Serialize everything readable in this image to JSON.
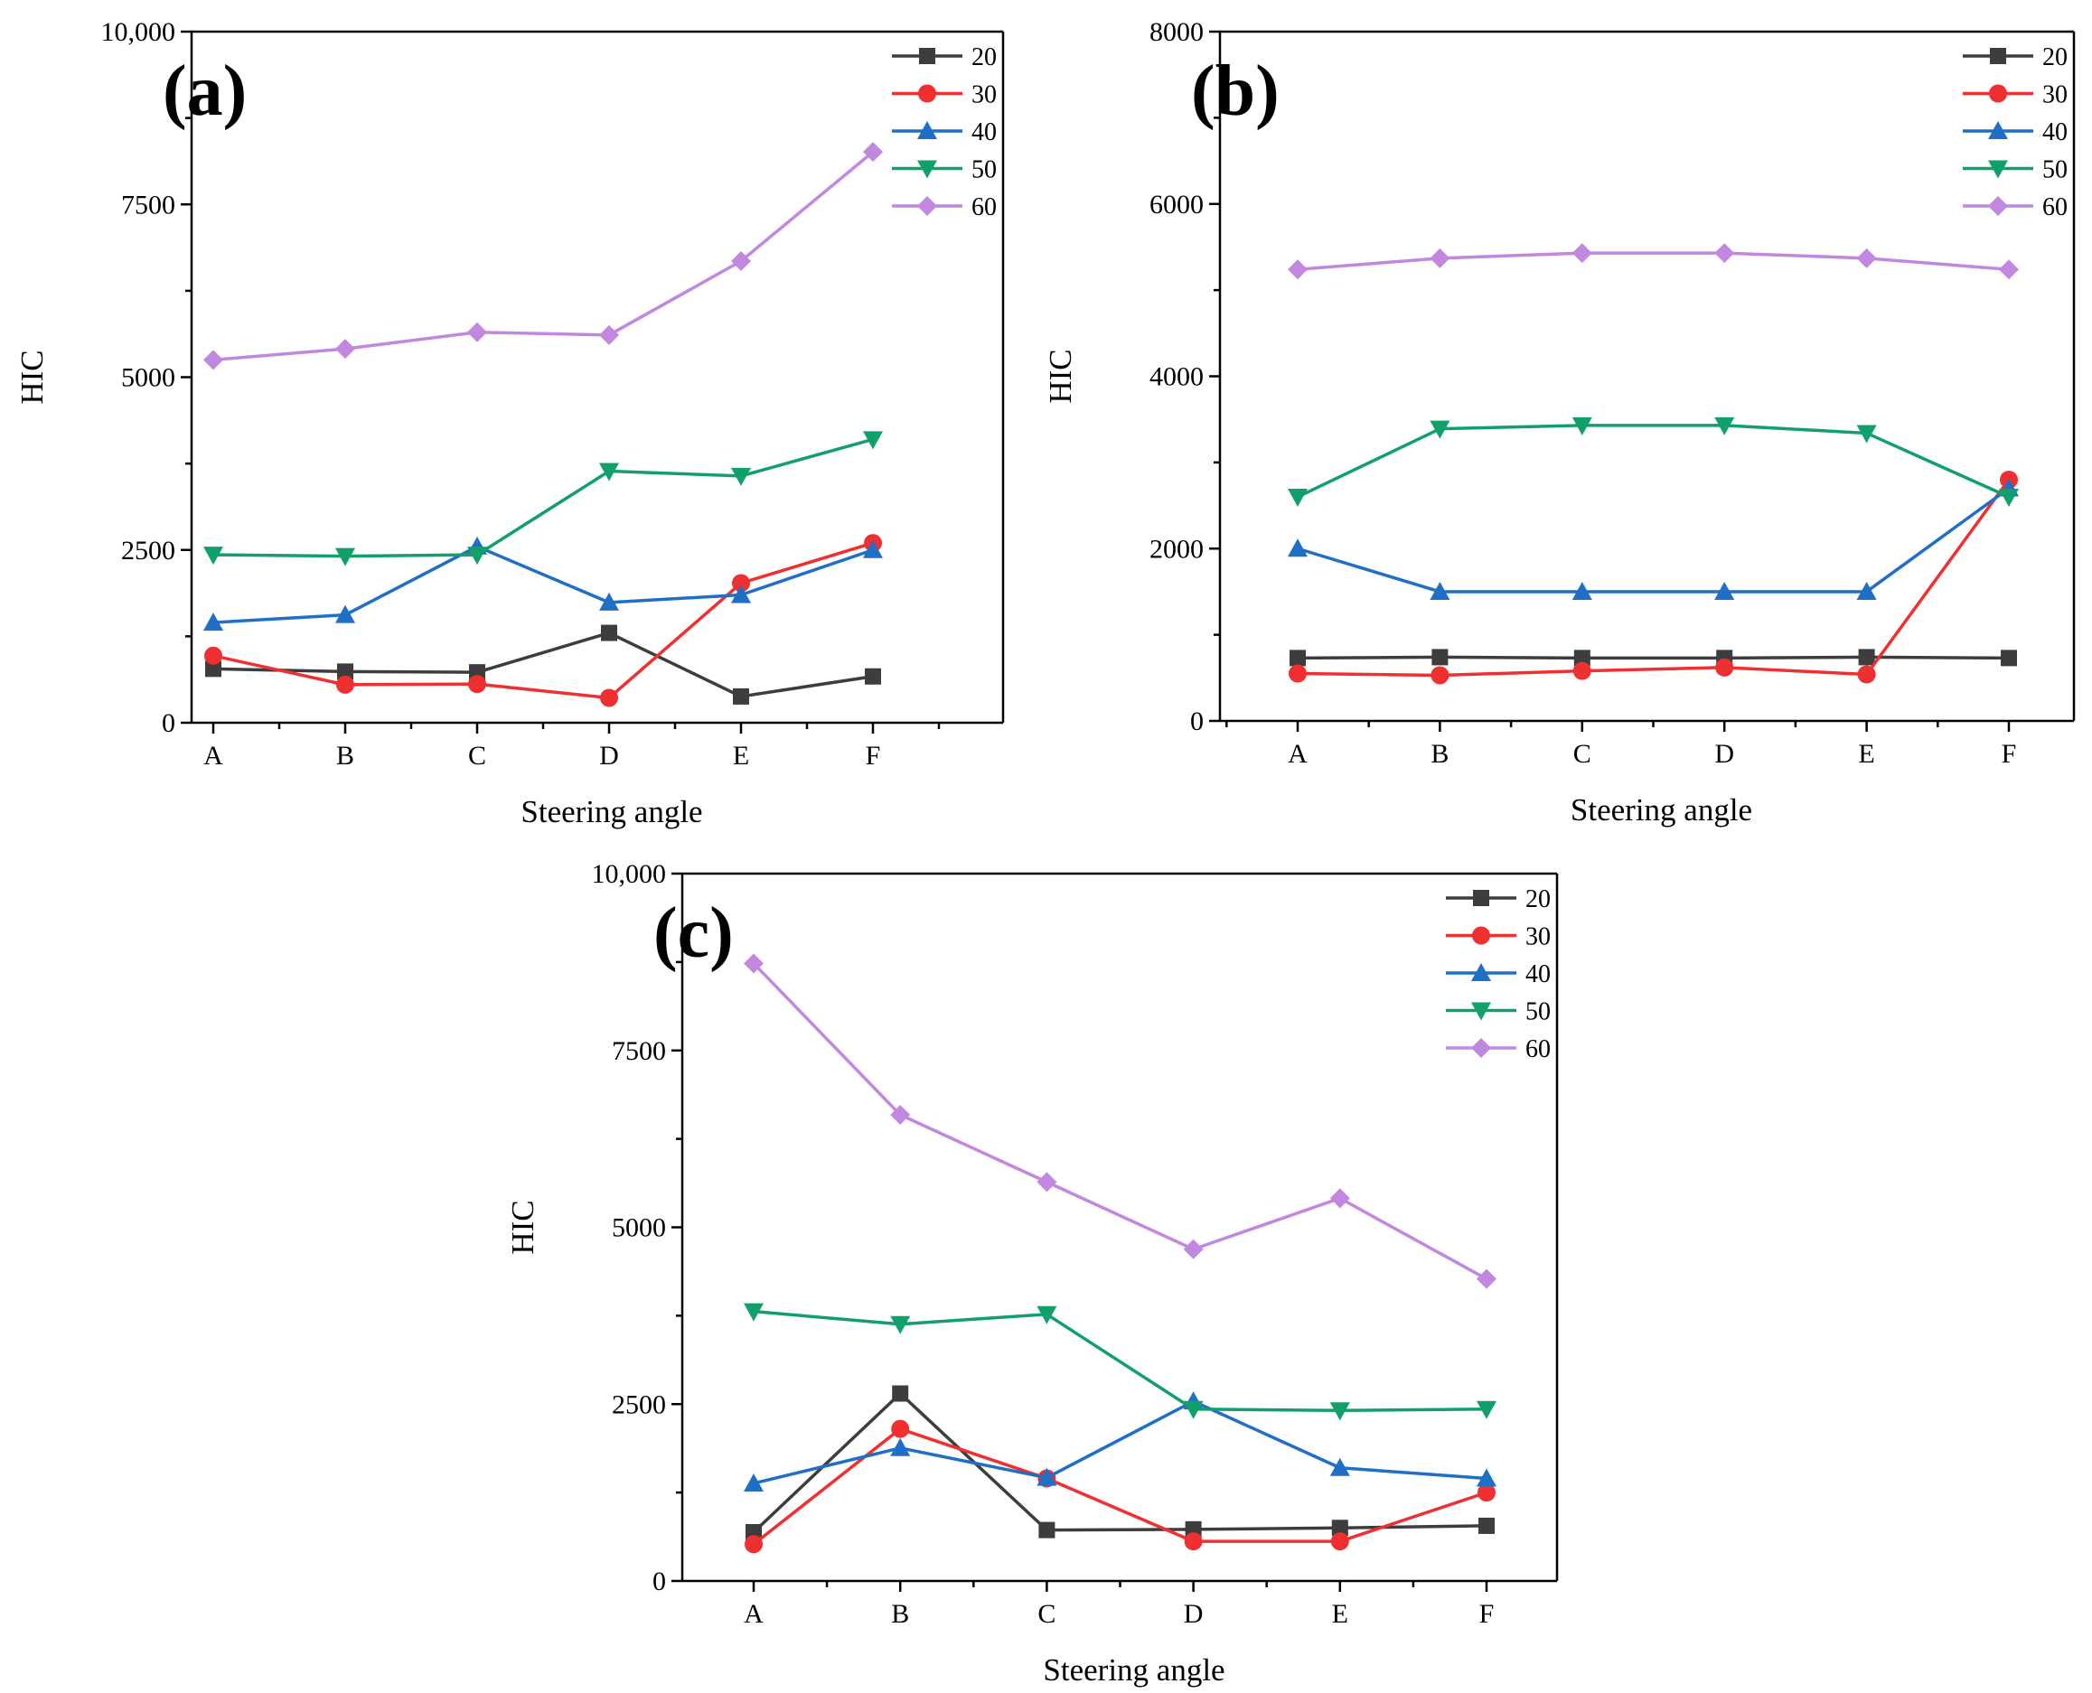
{
  "chart_data": [
    {
      "type": "line",
      "panel_label": "(a)",
      "categories": [
        "A",
        "B",
        "C",
        "D",
        "E",
        "F"
      ],
      "xlabel": "Steering angle",
      "ylabel": "HIC",
      "ylim": [
        0,
        10000
      ],
      "yticks": [
        0,
        2500,
        5000,
        7500,
        10000
      ],
      "ytick_labels": [
        "0",
        "2500",
        "5000",
        "7500",
        "10,000"
      ],
      "legend_position": "top-right",
      "series": [
        {
          "name": "20",
          "marker": "square",
          "color": "#3d3d3d",
          "values": [
            780,
            740,
            730,
            1300,
            380,
            670
          ]
        },
        {
          "name": "30",
          "marker": "circle",
          "color": "#f03030",
          "values": [
            970,
            550,
            560,
            360,
            2020,
            2600
          ]
        },
        {
          "name": "40",
          "marker": "triangle-up",
          "color": "#1f6fc6",
          "values": [
            1450,
            1560,
            2550,
            1740,
            1850,
            2500
          ]
        },
        {
          "name": "50",
          "marker": "triangle-down",
          "color": "#12a06a",
          "values": [
            2430,
            2410,
            2430,
            3640,
            3570,
            4100
          ]
        },
        {
          "name": "60",
          "marker": "diamond",
          "color": "#c288df",
          "values": [
            5250,
            5410,
            5650,
            5610,
            6680,
            8260
          ]
        }
      ]
    },
    {
      "type": "line",
      "panel_label": "(b)",
      "categories": [
        "A",
        "B",
        "C",
        "D",
        "E",
        "F"
      ],
      "xlabel": "Steering angle",
      "ylabel": "HIC",
      "ylim": [
        0,
        8000
      ],
      "yticks": [
        0,
        2000,
        4000,
        6000,
        8000
      ],
      "ytick_labels": [
        "0",
        "2000",
        "4000",
        "6000",
        "8000"
      ],
      "legend_position": "top-right",
      "series": [
        {
          "name": "20",
          "marker": "square",
          "color": "#3d3d3d",
          "values": [
            730,
            740,
            730,
            730,
            740,
            730
          ]
        },
        {
          "name": "30",
          "marker": "circle",
          "color": "#f03030",
          "values": [
            550,
            530,
            580,
            620,
            540,
            2800
          ]
        },
        {
          "name": "40",
          "marker": "triangle-up",
          "color": "#1f6fc6",
          "values": [
            2000,
            1500,
            1500,
            1500,
            1500,
            2700
          ]
        },
        {
          "name": "50",
          "marker": "triangle-down",
          "color": "#12a06a",
          "values": [
            2600,
            3390,
            3430,
            3430,
            3340,
            2600
          ]
        },
        {
          "name": "60",
          "marker": "diamond",
          "color": "#c288df",
          "values": [
            5240,
            5370,
            5430,
            5430,
            5370,
            5240
          ]
        }
      ]
    },
    {
      "type": "line",
      "panel_label": "(c)",
      "categories": [
        "A",
        "B",
        "C",
        "D",
        "E",
        "F"
      ],
      "xlabel": "Steering angle",
      "ylabel": "HIC",
      "ylim": [
        0,
        10000
      ],
      "yticks": [
        0,
        2500,
        5000,
        7500,
        10000
      ],
      "ytick_labels": [
        "0",
        "2500",
        "5000",
        "7500",
        "10,000"
      ],
      "legend_position": "top-right",
      "series": [
        {
          "name": "20",
          "marker": "square",
          "color": "#3d3d3d",
          "values": [
            690,
            2650,
            720,
            730,
            750,
            780
          ]
        },
        {
          "name": "30",
          "marker": "circle",
          "color": "#f03030",
          "values": [
            520,
            2150,
            1450,
            560,
            560,
            1250
          ]
        },
        {
          "name": "40",
          "marker": "triangle-up",
          "color": "#1f6fc6",
          "values": [
            1380,
            1880,
            1460,
            2540,
            1600,
            1450
          ]
        },
        {
          "name": "50",
          "marker": "triangle-down",
          "color": "#12a06a",
          "values": [
            3810,
            3630,
            3770,
            2430,
            2410,
            2430
          ]
        },
        {
          "name": "60",
          "marker": "diamond",
          "color": "#c288df",
          "values": [
            8730,
            6590,
            5640,
            4690,
            5410,
            4270
          ]
        }
      ]
    }
  ]
}
